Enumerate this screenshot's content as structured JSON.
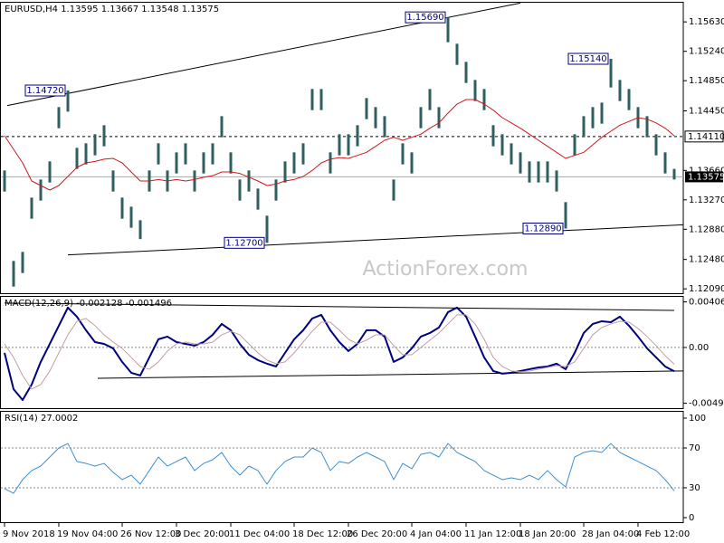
{
  "chart_data": [
    {
      "type": "ohlc",
      "title": "EURUSD,H4 1.13595 1.13667 1.13548 1.13575",
      "watermark": "ActionForex.com",
      "categories": [
        "9 Nov 2018",
        null,
        null,
        null,
        null,
        null,
        "19 Nov 04:00",
        null,
        null,
        null,
        null,
        null,
        null,
        "26 Nov 12:00",
        null,
        null,
        null,
        null,
        null,
        "3 Dec 20:00",
        null,
        null,
        null,
        null,
        null,
        "11 Dec 04:00",
        null,
        null,
        null,
        null,
        null,
        null,
        "18 Dec 12:00",
        null,
        null,
        null,
        null,
        null,
        "26 Dec 20:00",
        null,
        null,
        null,
        null,
        null,
        null,
        "4 Jan 04:00",
        null,
        null,
        null,
        null,
        null,
        "11 Jan 12:00",
        null,
        null,
        null,
        null,
        null,
        "18 Jan 20:00",
        null,
        null,
        null,
        null,
        null,
        null,
        "28 Jan 04:00",
        null,
        null,
        null,
        null,
        null,
        "4 Feb 12:00",
        null,
        null,
        null,
        null
      ],
      "high": [
        1.1366,
        1.1246,
        1.1258,
        1.133,
        1.1354,
        1.1378,
        1.145,
        1.1472,
        1.1396,
        1.1402,
        1.1414,
        1.1426,
        1.1366,
        1.133,
        1.1318,
        1.13,
        1.1366,
        1.1402,
        1.1366,
        1.139,
        1.1402,
        1.1366,
        1.139,
        1.1402,
        1.1438,
        1.139,
        1.1354,
        1.1366,
        1.1342,
        1.1306,
        1.1354,
        1.1378,
        1.139,
        1.1402,
        1.1474,
        1.1474,
        1.139,
        1.1414,
        1.1414,
        1.1426,
        1.1462,
        1.145,
        1.1438,
        1.1354,
        1.1402,
        1.139,
        1.145,
        1.1474,
        1.145,
        1.1569,
        1.1534,
        1.151,
        1.1486,
        1.1474,
        1.1426,
        1.1414,
        1.1402,
        1.139,
        1.1378,
        1.1378,
        1.1378,
        1.1366,
        1.1324,
        1.1414,
        1.1438,
        1.145,
        1.1456,
        1.1514,
        1.1486,
        1.1474,
        1.145,
        1.1438,
        1.1414,
        1.139,
        1.1368
      ],
      "low": [
        1.1338,
        1.1212,
        1.123,
        1.1302,
        1.1326,
        1.135,
        1.1422,
        1.1444,
        1.1368,
        1.1374,
        1.1386,
        1.1398,
        1.1338,
        1.1302,
        1.129,
        1.1275,
        1.1338,
        1.1374,
        1.1338,
        1.1362,
        1.1374,
        1.1338,
        1.1362,
        1.1374,
        1.141,
        1.1362,
        1.1326,
        1.1338,
        1.1314,
        1.127,
        1.1326,
        1.135,
        1.1362,
        1.1374,
        1.1446,
        1.1446,
        1.1362,
        1.1386,
        1.1386,
        1.1398,
        1.1434,
        1.1422,
        1.141,
        1.1326,
        1.1374,
        1.1362,
        1.1422,
        1.1446,
        1.1422,
        1.1536,
        1.1506,
        1.1482,
        1.1458,
        1.1446,
        1.1398,
        1.1386,
        1.1374,
        1.1362,
        1.135,
        1.135,
        1.135,
        1.1338,
        1.1289,
        1.1386,
        1.141,
        1.1422,
        1.1428,
        1.1476,
        1.1458,
        1.1446,
        1.1422,
        1.141,
        1.1386,
        1.1362,
        1.1354
      ],
      "color": "#2f5f5f",
      "series": [
        {
          "color": "#d01818",
          "width": 1,
          "values": [
            1.1412,
            1.1394,
            1.1376,
            1.1352,
            1.1346,
            1.134,
            1.1346,
            1.1358,
            1.137,
            1.1376,
            1.1378,
            1.1381,
            1.1382,
            1.1376,
            1.1364,
            1.1352,
            1.1352,
            1.1354,
            1.1352,
            1.1354,
            1.1352,
            1.1354,
            1.1357,
            1.1359,
            1.1364,
            1.1364,
            1.1362,
            1.1357,
            1.1352,
            1.1346,
            1.1348,
            1.1352,
            1.1354,
            1.1358,
            1.1366,
            1.1376,
            1.1381,
            1.1383,
            1.1382,
            1.1386,
            1.139,
            1.1398,
            1.1406,
            1.141,
            1.1406,
            1.141,
            1.1414,
            1.1422,
            1.1429,
            1.1442,
            1.1454,
            1.146,
            1.146,
            1.1454,
            1.1446,
            1.1436,
            1.1429,
            1.1422,
            1.1414,
            1.1406,
            1.1398,
            1.139,
            1.1382,
            1.1386,
            1.139,
            1.14,
            1.141,
            1.1418,
            1.1426,
            1.1431,
            1.1436,
            1.1434,
            1.1429,
            1.1422,
            1.1412
          ]
        }
      ],
      "ylim": [
        1.1202,
        1.15896
      ],
      "yticks": [
        {
          "value": 1.1563,
          "label": "1.15630"
        },
        {
          "value": 1.1524,
          "label": "1.15240"
        },
        {
          "value": 1.1485,
          "label": "1.14850"
        },
        {
          "value": 1.1445,
          "label": "1.14450"
        },
        {
          "value": 1.1366,
          "label": "1.13660"
        },
        {
          "value": 1.1327,
          "label": "1.13270"
        },
        {
          "value": 1.1288,
          "label": "1.12880"
        },
        {
          "value": 1.1248,
          "label": "1.12480"
        },
        {
          "value": 1.1209,
          "label": "1.12090"
        }
      ],
      "marked_levels": [
        {
          "value": 1.1411,
          "label": "1.14110"
        }
      ],
      "last_price": {
        "value": 1.13575,
        "label": "1.13575"
      },
      "annotations": [
        {
          "value": 1.1472,
          "label": "1.14720",
          "bar": 7
        },
        {
          "value": 1.1569,
          "label": "1.15690",
          "bar": 49
        },
        {
          "value": 1.127,
          "label": "1.12700",
          "bar": 29
        },
        {
          "value": 1.1289,
          "label": "1.12890",
          "bar": 62
        },
        {
          "value": 1.1514,
          "label": "1.15140",
          "bar": 67
        }
      ],
      "trendlines": [
        {
          "x": [
            0.3,
            57
          ],
          "y": [
            1.1452,
            1.1588
          ]
        },
        {
          "x": [
            7,
            75
          ],
          "y": [
            1.1254,
            1.1294
          ]
        }
      ]
    },
    {
      "type": "line",
      "title": "MACD(12,26,9) -0.002128 -0.001496",
      "series": [
        {
          "color": "#000080",
          "width": 2,
          "values": [
            -0.00048,
            -0.00372,
            -0.00469,
            -0.00331,
            -0.00129,
            0.00032,
            0.00194,
            0.00356,
            0.00275,
            0.00154,
            0.00048,
            0.00032,
            -8e-05,
            -0.00129,
            -0.00226,
            -0.0025,
            -0.00089,
            0.00073,
            0.00097,
            0.00048,
            0.00032,
            0.00016,
            0.00048,
            0.00113,
            0.0021,
            0.00154,
            0.00032,
            -0.00065,
            -0.00113,
            -0.00145,
            -0.0017,
            -0.00048,
            0.00073,
            0.00154,
            0.00259,
            0.00291,
            0.00154,
            0.00048,
            -0.00032,
            0.00032,
            0.00154,
            0.00154,
            0.00097,
            -0.00129,
            -0.00089,
            -8e-05,
            0.00097,
            0.00129,
            0.00178,
            0.00315,
            0.00356,
            0.00275,
            0.00097,
            -0.00089,
            -0.0021,
            -0.00234,
            -0.00226,
            -0.0021,
            -0.00194,
            -0.00178,
            -0.0017,
            -0.00145,
            -0.00194,
            -0.00048,
            0.00129,
            0.0021,
            0.00234,
            0.00226,
            0.00275,
            0.00194,
            0.00097,
            -8e-05,
            -0.00089,
            -0.0017,
            -0.00213
          ]
        },
        {
          "color": "#c0a0a0",
          "width": 1,
          "values": [
            0.00032,
            -0.00089,
            -0.0025,
            -0.00372,
            -0.00331,
            -0.0021,
            -0.00048,
            0.00113,
            0.00234,
            0.00259,
            0.00194,
            0.00113,
            0.00048,
            -8e-05,
            -0.00089,
            -0.0017,
            -0.00194,
            -0.00129,
            -0.00032,
            0.00032,
            0.00048,
            0.00032,
            0.00032,
            0.00048,
            0.00113,
            0.00145,
            0.00113,
            0.00032,
            -0.00048,
            -0.00113,
            -0.00145,
            -0.00129,
            -0.00048,
            0.00048,
            0.00145,
            0.00226,
            0.00226,
            0.00154,
            0.00073,
            0.00032,
            0.00065,
            0.00113,
            0.00113,
            0.00016,
            -0.00065,
            -0.00065,
            0,
            0.00065,
            0.00129,
            0.0021,
            0.00291,
            0.00291,
            0.0021,
            0.00073,
            -0.00089,
            -0.0017,
            -0.0021,
            -0.00218,
            -0.0021,
            -0.00194,
            -0.00178,
            -0.00162,
            -0.0017,
            -0.00129,
            -8e-05,
            0.00113,
            0.00178,
            0.0021,
            0.00234,
            0.00226,
            0.0017,
            0.00097,
            0.00016,
            -0.00073,
            -0.0015
          ]
        }
      ],
      "ylim": [
        -0.0055,
        0.0046
      ],
      "yticks": [
        0.004069,
        {
          "value": 0,
          "label": "0.00"
        },
        -0.004981
      ],
      "levels": [
        0
      ],
      "trendlines": [
        {
          "x": [
            0,
            74
          ],
          "y": [
            0.00396,
            0.00331
          ]
        },
        {
          "x": [
            10.3,
            75
          ],
          "y": [
            -0.00275,
            -0.0021
          ]
        }
      ]
    },
    {
      "type": "line",
      "title": "RSI(14) 27.0002",
      "series": [
        {
          "color": "#3c8fd0",
          "width": 1,
          "values": [
            29.1,
            24.5,
            38.2,
            47.3,
            51.8,
            60.9,
            70.0,
            74.5,
            56.4,
            54.5,
            51.8,
            54.5,
            45.5,
            38.2,
            42.7,
            33.6,
            47.3,
            60.9,
            51.8,
            56.4,
            60.9,
            47.3,
            54.5,
            58.2,
            65.5,
            51.8,
            42.7,
            51.8,
            47.3,
            33.6,
            47.3,
            56.4,
            60.9,
            60.9,
            70.0,
            65.5,
            47.3,
            56.4,
            54.5,
            60.9,
            65.5,
            60.9,
            56.4,
            38.2,
            54.5,
            49.1,
            63.6,
            65.5,
            60.9,
            74.5,
            65.5,
            60.9,
            56.4,
            47.3,
            42.7,
            38.2,
            40.0,
            38.2,
            42.7,
            38.2,
            47.3,
            38.2,
            30.9,
            60.9,
            65.5,
            67.3,
            65.5,
            74.5,
            65.5,
            60.9,
            56.4,
            51.8,
            47.3,
            38.2,
            27.0
          ]
        }
      ],
      "ylim": [
        -5.5,
        107.3
      ],
      "yticks": [
        100,
        70,
        30,
        0
      ],
      "levels": [
        70,
        30
      ]
    }
  ]
}
